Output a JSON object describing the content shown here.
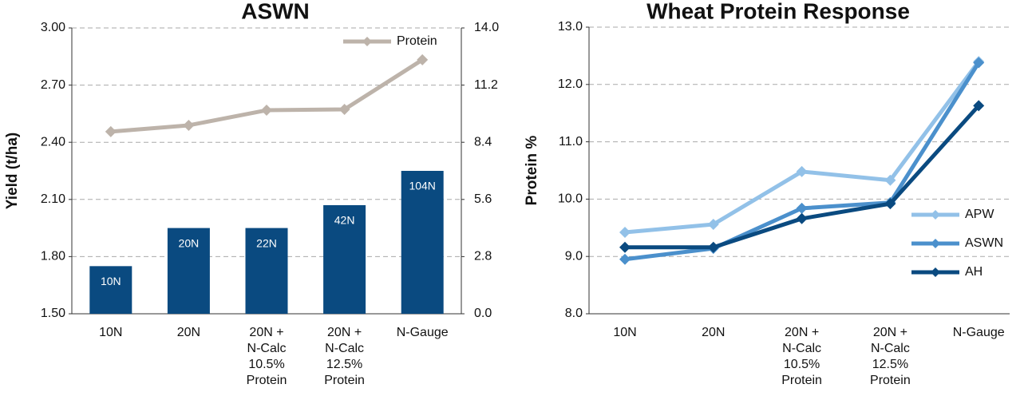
{
  "chart_data": [
    {
      "type": "bar",
      "title": "ASWN",
      "y_label": "Yield (t/ha)",
      "categories": [
        "10N",
        "20N",
        "20N +\nN-Calc\n10.5%\nProtein",
        "20N +\nN-Calc\n12.5%\nProtein",
        "N-Gauge"
      ],
      "values": [
        1.75,
        1.95,
        1.95,
        2.07,
        2.25
      ],
      "color": "#0a4a80",
      "bar_labels": [
        "10N",
        "20N",
        "22N",
        "42N",
        "104N"
      ],
      "series": [
        {
          "name": "Protein",
          "color": "#bdb3aa",
          "values": [
            8.92,
            9.23,
            9.97,
            10.01,
            12.44
          ],
          "axis": "y2"
        }
      ],
      "ylim": [
        1.5,
        3.0
      ],
      "yticks": [
        {
          "value": 1.5,
          "label": "1.50"
        },
        {
          "value": 1.8,
          "label": "1.80"
        },
        {
          "value": 2.1,
          "label": "2.10"
        },
        {
          "value": 2.4,
          "label": "2.40"
        },
        {
          "value": 2.7,
          "label": "2.70"
        },
        {
          "value": 3.0,
          "label": "3.00"
        }
      ],
      "y2lim": [
        0,
        14
      ],
      "y2ticks": [
        {
          "value": 0,
          "label": "0.0"
        },
        2.8,
        5.6,
        8.4,
        11.2,
        {
          "value": 14,
          "label": "14.0"
        }
      ],
      "grid": true,
      "legend": "top-right"
    },
    {
      "type": "line",
      "title": "Wheat Protein Response",
      "y_label": "Protein %",
      "categories": [
        "10N",
        "20N",
        "20N +\nN-Calc\n10.5%\nProtein",
        "20N +\nN-Calc\n12.5%\nProtein",
        "N-Gauge"
      ],
      "series": [
        {
          "name": "APW",
          "color": "#92c1e8",
          "values": [
            9.42,
            9.56,
            10.48,
            10.33,
            12.4
          ]
        },
        {
          "name": "ASWN",
          "color": "#4b90cc",
          "values": [
            8.95,
            9.14,
            9.84,
            9.94,
            12.38
          ]
        },
        {
          "name": "AH",
          "color": "#0a4a80",
          "values": [
            9.16,
            9.16,
            9.66,
            9.92,
            11.63
          ]
        }
      ],
      "ylim": [
        8.0,
        13.0
      ],
      "yticks": [
        {
          "value": 8,
          "label": "8.0"
        },
        {
          "value": 9,
          "label": "9.0"
        },
        {
          "value": 10,
          "label": "10.0"
        },
        {
          "value": 11,
          "label": "11.0"
        },
        {
          "value": 12,
          "label": "12.0"
        },
        {
          "value": 13,
          "label": "13.0"
        }
      ],
      "grid": true,
      "legend": "right"
    }
  ]
}
